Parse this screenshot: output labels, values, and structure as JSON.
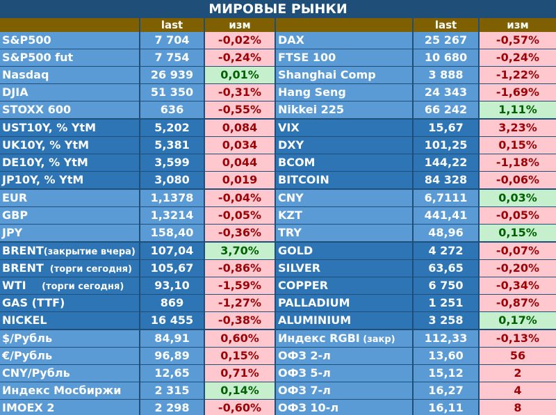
{
  "title": "МИРОВЫЕ РЫНКИ",
  "headers": {
    "last": "last",
    "change": "изм"
  },
  "colors": {
    "light_blue": "#5b9bd5",
    "dark_blue": "#2e75b6",
    "header_gold": "#7f6000",
    "neg_bg": "#ffc7ce",
    "neg_text": "#9c0006",
    "pos_bg": "#c6efce",
    "pos_text": "#006100"
  },
  "groups": [
    {
      "shade": "light",
      "left": [
        {
          "name": "S&P500",
          "last": "7 704",
          "change": "-0,02%",
          "dir": "neg"
        },
        {
          "name": "S&P500 fut",
          "last": "7 754",
          "change": "-0,24%",
          "dir": "neg"
        },
        {
          "name": "Nasdaq",
          "last": "26 939",
          "change": "0,01%",
          "dir": "pos"
        },
        {
          "name": "DJIA",
          "last": "51 350",
          "change": "-0,31%",
          "dir": "neg"
        },
        {
          "name": "STOXX 600",
          "last": "636",
          "change": "-0,55%",
          "dir": "neg"
        }
      ],
      "right": [
        {
          "name": "DAX",
          "last": "25 267",
          "change": "-0,57%",
          "dir": "neg"
        },
        {
          "name": "FTSE 100",
          "last": "10 680",
          "change": "-0,24%",
          "dir": "neg"
        },
        {
          "name": "Shanghai Comp",
          "last": "3 888",
          "change": "-1,22%",
          "dir": "neg"
        },
        {
          "name": "Hang Seng",
          "last": "24 343",
          "change": "-1,69%",
          "dir": "neg"
        },
        {
          "name": "Nikkei 225",
          "last": "66 242",
          "change": "1,11%",
          "dir": "pos"
        }
      ]
    },
    {
      "shade": "dark",
      "left": [
        {
          "name": "UST10Y, % YtM",
          "last": "5,202",
          "change": "0,084",
          "dir": "neg"
        },
        {
          "name": "UK10Y, % YtM",
          "last": "5,381",
          "change": "0,034",
          "dir": "neg"
        },
        {
          "name": "DE10Y, % YtM",
          "last": "3,599",
          "change": "0,044",
          "dir": "neg"
        },
        {
          "name": "JP10Y, % YtM",
          "last": "3,080",
          "change": "0,019",
          "dir": "neg"
        }
      ],
      "right": [
        {
          "name": "VIX",
          "last": "15,67",
          "change": "3,23%",
          "dir": "neg"
        },
        {
          "name": "DXY",
          "last": "101,25",
          "change": "0,15%",
          "dir": "neg"
        },
        {
          "name": "BCOM",
          "last": "144,22",
          "change": "-1,18%",
          "dir": "neg"
        },
        {
          "name": "BITCOIN",
          "last": "84 328",
          "change": "-0,06%",
          "dir": "neg"
        }
      ]
    },
    {
      "shade": "light",
      "left": [
        {
          "name": "EUR",
          "last": "1,1378",
          "change": "-0,04%",
          "dir": "neg"
        },
        {
          "name": "GBP",
          "last": "1,3214",
          "change": "-0,05%",
          "dir": "neg"
        },
        {
          "name": "JPY",
          "last": "158,40",
          "change": "-0,36%",
          "dir": "neg"
        }
      ],
      "right": [
        {
          "name": "CNY",
          "last": "6,7111",
          "change": "0,03%",
          "dir": "pos"
        },
        {
          "name": "KZT",
          "last": "441,41",
          "change": "-0,05%",
          "dir": "neg"
        },
        {
          "name": "TRY",
          "last": "48,96",
          "change": "0,15%",
          "dir": "pos"
        }
      ]
    },
    {
      "shade": "dark",
      "left": [
        {
          "name": "BRENT",
          "note": "(закрытие вчера)",
          "last": "107,04",
          "change": "3,70%",
          "dir": "pos"
        },
        {
          "name": "BRENT",
          "note": "  (торги сегодня)",
          "last": "105,67",
          "change": "-0,86%",
          "dir": "neg"
        },
        {
          "name": "WTI",
          "note": "     (торги сегодня)",
          "last": "93,10",
          "change": "-1,59%",
          "dir": "neg"
        },
        {
          "name": "GAS (TTF)",
          "last": "869",
          "change": "-1,27%",
          "dir": "neg"
        },
        {
          "name": "NICKEL",
          "last": "16 455",
          "change": "-0,38%",
          "dir": "neg"
        }
      ],
      "right": [
        {
          "name": "GOLD",
          "last": "4 272",
          "change": "-0,07%",
          "dir": "neg"
        },
        {
          "name": "SILVER",
          "last": "63,65",
          "change": "-0,20%",
          "dir": "neg"
        },
        {
          "name": "COPPER",
          "last": "6 750",
          "change": "-0,34%",
          "dir": "neg"
        },
        {
          "name": "PALLADIUM",
          "last": "1 251",
          "change": "-0,87%",
          "dir": "neg"
        },
        {
          "name": "ALUMINIUM",
          "last": "3 258",
          "change": "0,17%",
          "dir": "pos"
        }
      ]
    },
    {
      "shade": "light",
      "left": [
        {
          "name": "$/Рубль",
          "last": "84,91",
          "change": "0,60%",
          "dir": "neg"
        },
        {
          "name": "€/Рубль",
          "last": "96,89",
          "change": "0,15%",
          "dir": "neg"
        },
        {
          "name": "CNY/Рубль",
          "last": "12,65",
          "change": "0,71%",
          "dir": "neg"
        },
        {
          "name": "Индекс Мосбиржи",
          "last": "2 315",
          "change": "0,14%",
          "dir": "pos"
        },
        {
          "name": "IMOEX 2",
          "last": "2 298",
          "change": "-0,60%",
          "dir": "neg"
        }
      ],
      "right": [
        {
          "name": "Индекс RGBI",
          "note": " (закр)",
          "last": "112,33",
          "change": "-0,13%",
          "dir": "neg"
        },
        {
          "name": "ОФЗ 2-л",
          "last": "13,60",
          "change": "56",
          "dir": "neg"
        },
        {
          "name": "ОФЗ 5-л",
          "last": "15,12",
          "change": "2",
          "dir": "neg"
        },
        {
          "name": "ОФЗ 7-л",
          "last": "16,27",
          "change": "4",
          "dir": "neg"
        },
        {
          "name": "ОФЗ 10-л",
          "last": "16,11",
          "change": "8",
          "dir": "neg"
        }
      ]
    }
  ]
}
